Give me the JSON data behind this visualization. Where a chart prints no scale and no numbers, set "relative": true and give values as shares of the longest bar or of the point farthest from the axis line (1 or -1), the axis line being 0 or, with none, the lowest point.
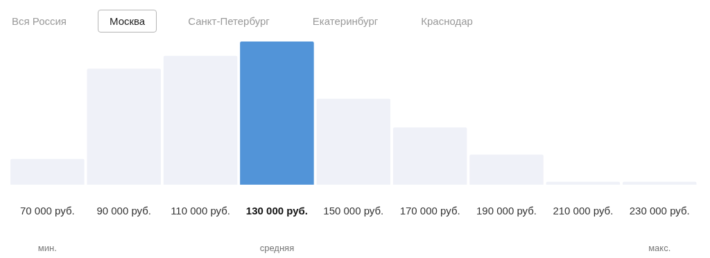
{
  "chart_data": {
    "type": "bar",
    "relative": true,
    "categories": [
      "70 000 руб.",
      "90 000 руб.",
      "110 000 руб.",
      "130 000 руб.",
      "150 000 руб.",
      "170 000 руб.",
      "190 000 руб.",
      "210 000 руб.",
      "230 000 руб."
    ],
    "values": [
      0.18,
      0.81,
      0.9,
      1,
      0.6,
      0.4,
      0.21,
      0.02,
      0.02
    ],
    "colors": [
      "#eff1f8",
      "#eff1f8",
      "#eff1f8",
      "#5294d8",
      "#eff1f8",
      "#eff1f8",
      "#eff1f8",
      "#eff1f8",
      "#eff1f8"
    ],
    "grid": false,
    "legend": false,
    "annotations": [
      "Вся Россия",
      "Москва",
      "Санкт-Петербург",
      "Екатеринбург",
      "Краснодар",
      "мин.",
      "средняя",
      "макс."
    ]
  }
}
